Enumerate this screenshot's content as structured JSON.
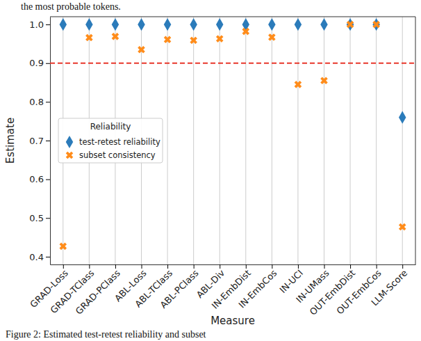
{
  "chart_data": {
    "type": "scatter",
    "annotations": [
      "the most probable tokens.",
      "Figure 2: Estimated test-retest reliability and subset"
    ],
    "x_label": "Measure",
    "y_label": "Estimate",
    "categories": [
      "GRAD-Loss",
      "GRAD-TClass",
      "GRAD-PClass",
      "ABL-Loss",
      "ABL-TClass",
      "ABL-PClass",
      "ABL-Div",
      "IN-EmbDist",
      "IN-EmbCos",
      "IN-UCI",
      "IN-UMass",
      "OUT-EmbDist",
      "OUT-EmbCos",
      "LLM-Score"
    ],
    "series": [
      {
        "name": "test-retest reliability",
        "color": "#2b7bba",
        "marker": "diamond",
        "values": [
          1.0,
          1.0,
          1.0,
          1.0,
          1.0,
          1.0,
          1.0,
          1.0,
          1.0,
          1.0,
          1.0,
          1.0,
          1.0,
          0.76
        ]
      },
      {
        "name": "subset consistency",
        "color": "#ff8c1a",
        "marker": "x",
        "values": [
          0.427,
          0.966,
          0.969,
          0.935,
          0.961,
          0.959,
          0.963,
          0.982,
          0.967,
          0.845,
          0.855,
          1.0,
          1.0,
          0.477
        ]
      }
    ],
    "reference_line": 0.9,
    "legend_title": "Reliability",
    "legend": "center left",
    "grid": true,
    "ylim": [
      0.38,
      1.02
    ],
    "yticks": [
      0.4,
      0.5,
      0.6,
      0.7,
      0.8,
      0.9,
      {
        "value": 1,
        "label": "1.0"
      }
    ]
  }
}
